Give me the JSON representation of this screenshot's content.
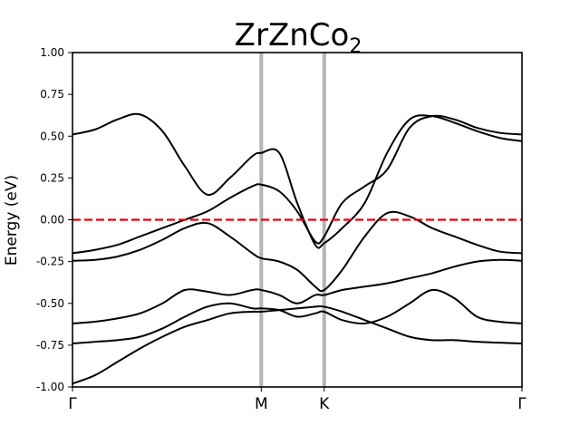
{
  "chart_data": {
    "type": "line",
    "title": "ZrZnCo",
    "title_subscript": "2",
    "xlabel": "",
    "ylabel": "Energy (eV)",
    "ylim": [
      -1.0,
      1.0
    ],
    "xlim": [
      0,
      1
    ],
    "y_ticks": [
      "-1.00",
      "-0.75",
      "-0.50",
      "-0.25",
      "0.00",
      "0.25",
      "0.50",
      "0.75",
      "1.00"
    ],
    "y_tick_values": [
      -1.0,
      -0.75,
      -0.5,
      -0.25,
      0.0,
      0.25,
      0.5,
      0.75,
      1.0
    ],
    "high_symmetry_points": [
      {
        "label": "Γ",
        "x": 0.0
      },
      {
        "label": "M",
        "x": 0.42
      },
      {
        "label": "K",
        "x": 0.56
      },
      {
        "label": "Γ",
        "x": 1.0
      }
    ],
    "fermi_level": 0.0,
    "colors": {
      "bands": "#000000",
      "fermi": "#e8000b",
      "vlines": "#b4b4b4"
    },
    "grid": false,
    "series": [
      {
        "x": [
          0,
          0.05,
          0.1,
          0.15,
          0.2,
          0.25,
          0.3,
          0.35,
          0.4,
          0.42,
          0.46,
          0.5,
          0.54,
          0.56,
          0.6,
          0.65,
          0.7,
          0.75,
          0.8,
          0.85,
          0.9,
          0.95,
          1.0
        ],
        "y": [
          -0.98,
          -0.93,
          -0.85,
          -0.77,
          -0.7,
          -0.64,
          -0.6,
          -0.56,
          -0.55,
          -0.55,
          -0.54,
          -0.53,
          -0.52,
          -0.52,
          -0.55,
          -0.6,
          -0.65,
          -0.7,
          -0.72,
          -0.72,
          -0.73,
          -0.735,
          -0.74
        ]
      },
      {
        "x": [
          0,
          0.05,
          0.1,
          0.15,
          0.2,
          0.25,
          0.3,
          0.35,
          0.4,
          0.42,
          0.46,
          0.5,
          0.54,
          0.56,
          0.6,
          0.65,
          0.7,
          0.75,
          0.8,
          0.85,
          0.9,
          0.95,
          1.0
        ],
        "y": [
          -0.74,
          -0.73,
          -0.72,
          -0.7,
          -0.65,
          -0.58,
          -0.52,
          -0.5,
          -0.53,
          -0.53,
          -0.54,
          -0.58,
          -0.56,
          -0.55,
          -0.6,
          -0.62,
          -0.58,
          -0.5,
          -0.42,
          -0.47,
          -0.58,
          -0.61,
          -0.62
        ]
      },
      {
        "x": [
          0,
          0.05,
          0.1,
          0.15,
          0.2,
          0.25,
          0.3,
          0.35,
          0.4,
          0.42,
          0.46,
          0.5,
          0.54,
          0.56,
          0.6,
          0.65,
          0.7,
          0.75,
          0.8,
          0.85,
          0.9,
          0.95,
          1.0
        ],
        "y": [
          -0.62,
          -0.61,
          -0.59,
          -0.56,
          -0.5,
          -0.42,
          -0.43,
          -0.45,
          -0.42,
          -0.42,
          -0.45,
          -0.5,
          -0.45,
          -0.45,
          -0.42,
          -0.4,
          -0.38,
          -0.35,
          -0.32,
          -0.28,
          -0.25,
          -0.24,
          -0.245
        ]
      },
      {
        "x": [
          0,
          0.05,
          0.1,
          0.15,
          0.2,
          0.25,
          0.3,
          0.35,
          0.4,
          0.42,
          0.46,
          0.5,
          0.54,
          0.56,
          0.6,
          0.65,
          0.7,
          0.75,
          0.8,
          0.85,
          0.9,
          0.95,
          1.0
        ],
        "y": [
          -0.245,
          -0.24,
          -0.22,
          -0.18,
          -0.12,
          -0.05,
          -0.02,
          -0.1,
          -0.2,
          -0.23,
          -0.25,
          -0.3,
          -0.4,
          -0.42,
          -0.3,
          -0.1,
          0.04,
          0.02,
          -0.05,
          -0.1,
          -0.15,
          -0.19,
          -0.2
        ]
      },
      {
        "x": [
          0,
          0.05,
          0.1,
          0.15,
          0.2,
          0.25,
          0.3,
          0.35,
          0.4,
          0.42,
          0.46,
          0.5,
          0.54,
          0.56,
          0.6,
          0.65,
          0.7,
          0.75,
          0.8,
          0.85,
          0.9,
          0.95,
          1.0
        ],
        "y": [
          -0.2,
          -0.18,
          -0.15,
          -0.1,
          -0.05,
          0.0,
          0.05,
          0.13,
          0.2,
          0.21,
          0.17,
          0.05,
          -0.13,
          -0.1,
          0.1,
          0.2,
          0.3,
          0.55,
          0.62,
          0.6,
          0.55,
          0.52,
          0.51
        ]
      },
      {
        "x": [
          0,
          0.05,
          0.1,
          0.15,
          0.2,
          0.25,
          0.3,
          0.35,
          0.4,
          0.42,
          0.46,
          0.5,
          0.54,
          0.56,
          0.6,
          0.65,
          0.7,
          0.75,
          0.8,
          0.85,
          0.9,
          0.95,
          1.0
        ],
        "y": [
          0.51,
          0.54,
          0.6,
          0.63,
          0.53,
          0.32,
          0.15,
          0.25,
          0.38,
          0.4,
          0.4,
          0.1,
          -0.15,
          -0.14,
          -0.05,
          0.1,
          0.4,
          0.6,
          0.62,
          0.58,
          0.53,
          0.49,
          0.47
        ]
      }
    ]
  }
}
